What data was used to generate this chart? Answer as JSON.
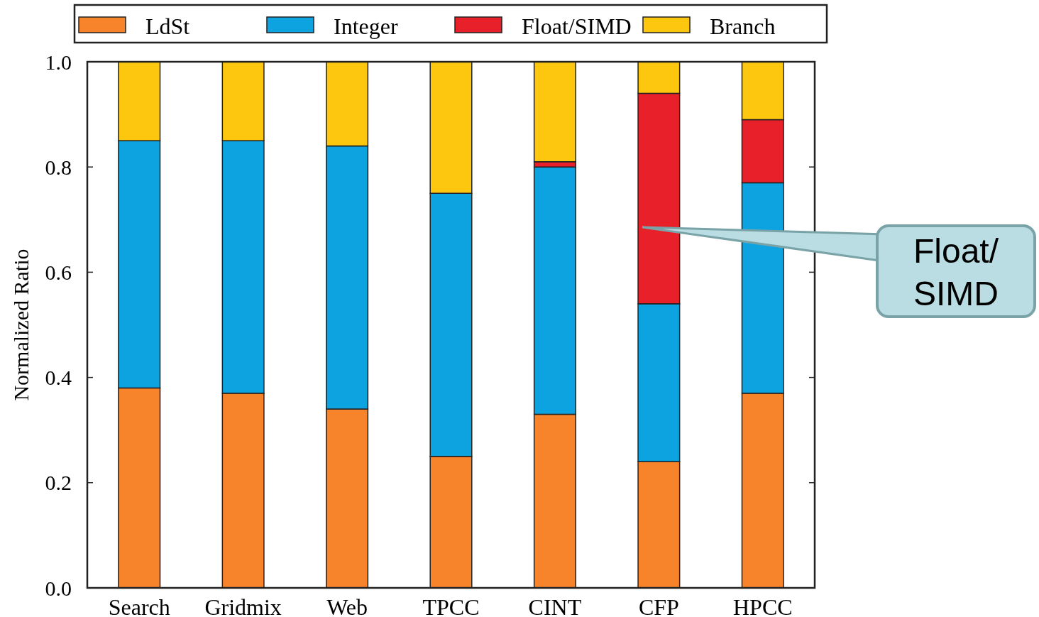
{
  "chart_data": {
    "type": "bar",
    "stacked": true,
    "ylabel": "Normalized Ratio",
    "categories": [
      "Search",
      "Gridmix",
      "Web",
      "TPCC",
      "CINT",
      "CFP",
      "HPCC"
    ],
    "series": [
      {
        "name": "LdSt",
        "color": "#f7832a",
        "values": [
          0.38,
          0.37,
          0.34,
          0.25,
          0.33,
          0.24,
          0.37
        ]
      },
      {
        "name": "Integer",
        "color": "#0da2e0",
        "values": [
          0.47,
          0.48,
          0.5,
          0.5,
          0.47,
          0.3,
          0.4
        ]
      },
      {
        "name": "Float/SIMD",
        "color": "#e8202a",
        "values": [
          0,
          0,
          0,
          0,
          0.01,
          0.4,
          0.12
        ]
      },
      {
        "name": "Branch",
        "color": "#fdc70f",
        "values": [
          0.15,
          0.15,
          0.16,
          0.25,
          0.19,
          0.06,
          0.11
        ]
      }
    ],
    "ylim": [
      0,
      1
    ],
    "yticks": [
      {
        "value": 0,
        "label": "0.0"
      },
      {
        "value": 0.2,
        "label": "0.2"
      },
      {
        "value": 0.4,
        "label": "0.4"
      },
      {
        "value": 0.6,
        "label": "0.6"
      },
      {
        "value": 0.8,
        "label": "0.8"
      },
      {
        "value": 1,
        "label": "1.0"
      }
    ],
    "legend": "top",
    "annotations": [
      "Float/\nSIMD"
    ]
  }
}
